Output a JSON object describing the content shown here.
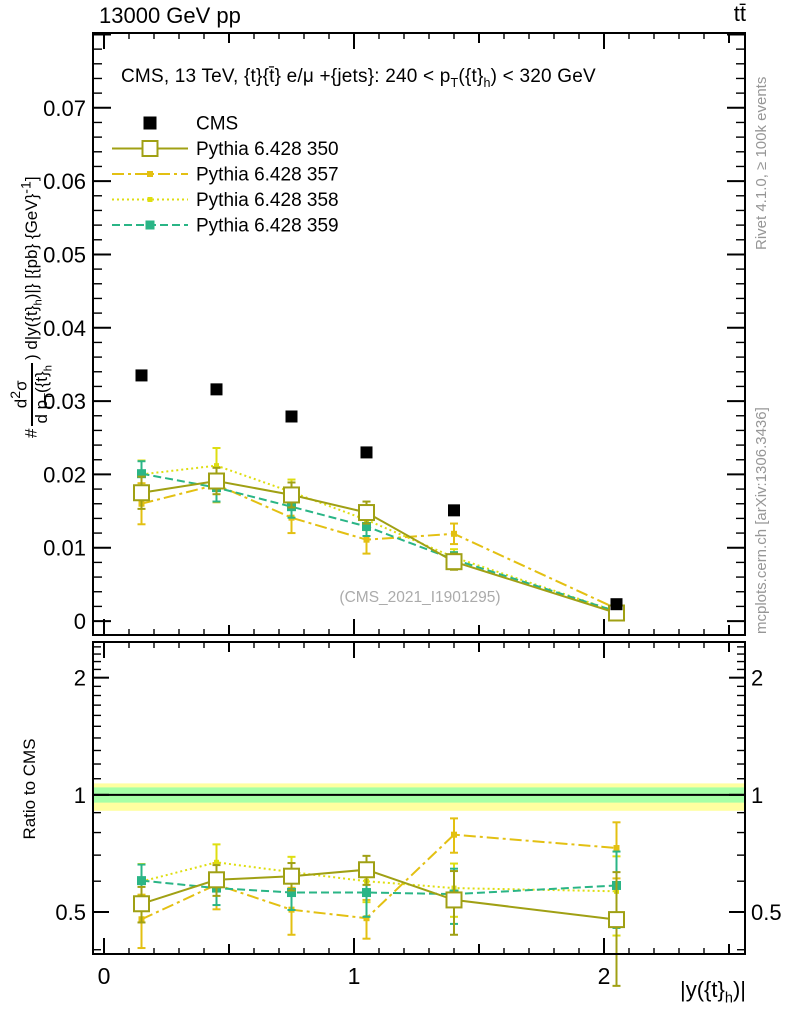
{
  "header": {
    "left": "13000 GeV pp",
    "right": "tt̄"
  },
  "side_notes": {
    "right_top": "Rivet 4.1.0, ≥ 100k events",
    "right_bottom": "mcplots.cern.ch [arXiv:1306.3436]"
  },
  "main_panel": {
    "title": "CMS, 13 TeV, {t}{t̄} e/μ +{jets}: 240 < p~T~({t}~h~) < 320 GeV",
    "watermark": "(CMS_2021_I1901295)",
    "ylabel": {
      "prefix": "#",
      "numerator": "d^2^σ",
      "denominator": "d p~T~({t}~h~",
      "suffix": ") d|y({t}~h~)|} [{pb} {GeV}^-1^]"
    }
  },
  "ratio_panel": {
    "ylabel": "Ratio to CMS"
  },
  "xlabel": "|y({t}~h~)|",
  "colors": {
    "cms": "#000000",
    "pythia350": "#a0a014",
    "pythia357": "#e3c012",
    "pythia358": "#dede10",
    "pythia359": "#2ab586",
    "band_yellow": "#ffffa0",
    "band_green": "#a6ffa6",
    "side_note_gray": "#969696",
    "watermark_gray": "#ababab"
  },
  "chart_data": [
    {
      "id": "main",
      "type": "scatter",
      "title": "CMS, 13 TeV, {t}{t} e/mu +{jets}: 240 < pT({t}h) < 320 GeV",
      "xlabel": "|y({t}h)|",
      "ylabel": "# d2sigma / d pT({t}h) d|y({t}h)| [{pb} {GeV}-1]",
      "x": [
        0.15,
        0.45,
        0.75,
        1.05,
        1.4,
        2.05
      ],
      "bin_edges": [
        0,
        0.3,
        0.6,
        0.9,
        1.2,
        1.6,
        2.5
      ],
      "xlim": [
        -0.044,
        2.564
      ],
      "ylim": [
        -0.0019,
        0.0802
      ],
      "grid": false,
      "legend_position": "top-left",
      "y_tick_labels": [
        "0",
        "0.01",
        "0.02",
        "0.03",
        "0.04",
        "0.05",
        "0.06",
        "0.07"
      ],
      "x_tick_labels": [
        {
          "v": 0,
          "label": "0"
        },
        {
          "v": 1,
          "label": "1"
        },
        {
          "v": 2,
          "label": "2"
        }
      ],
      "series": [
        {
          "name": "CMS",
          "color": "#000000",
          "marker": "square-filled",
          "marker_size": 12,
          "line": "none",
          "values": [
            0.0335,
            0.0316,
            0.0279,
            0.023,
            0.0151,
            0.0023
          ],
          "errors": [
            0,
            0,
            0,
            0,
            0,
            0
          ]
        },
        {
          "name": "Pythia 6.428 350",
          "color": "#a0a014",
          "marker": "square-open",
          "marker_size": 15,
          "line": "solid",
          "values": [
            0.0175,
            0.0191,
            0.0172,
            0.0148,
            0.0081,
            0.0011
          ],
          "errors": [
            0.0022,
            0.0018,
            0.0017,
            0.0015,
            0.0011,
            0.0004
          ]
        },
        {
          "name": "Pythia 6.428 357",
          "color": "#e3c012",
          "marker": "square-filled",
          "marker_size": 6,
          "line": "dash-dot",
          "values": [
            0.016,
            0.0186,
            0.0141,
            0.0111,
            0.0119,
            0.0017
          ],
          "errors": [
            0.0028,
            0.0024,
            0.0021,
            0.0019,
            0.0014,
            0.0005
          ]
        },
        {
          "name": "Pythia 6.428 358",
          "color": "#dede10",
          "marker": "square-filled",
          "marker_size": 5,
          "line": "dotted",
          "values": [
            0.02,
            0.0212,
            0.0176,
            0.0138,
            0.0087,
            0.0013
          ],
          "errors": [
            0.0019,
            0.0024,
            0.0017,
            0.0014,
            0.0011,
            0.0004
          ]
        },
        {
          "name": "Pythia 6.428 359",
          "color": "#2ab586",
          "marker": "square-filled",
          "marker_size": 9,
          "line": "dashed",
          "values": [
            0.0201,
            0.0182,
            0.0156,
            0.0129,
            0.0084,
            0.0013
          ],
          "errors": [
            0.0017,
            0.0019,
            0.0015,
            0.0013,
            0.001,
            0.0004
          ]
        }
      ]
    },
    {
      "id": "ratio",
      "type": "line",
      "ylabel": "Ratio to CMS",
      "yscale": "log",
      "ylim": [
        0.39,
        2.47
      ],
      "reference_line": 1,
      "bands": [
        {
          "color": "#ffffa0",
          "lo": 0.91,
          "hi": 1.07
        },
        {
          "color": "#a6ffa6",
          "lo": 0.955,
          "hi": 1.045
        }
      ],
      "y_tick_labels": [
        {
          "v": 2,
          "label": "2"
        },
        {
          "v": 1,
          "label": "1"
        },
        {
          "v": 0.5,
          "label": "0.5"
        }
      ],
      "series": [
        {
          "name": "Pythia 6.428 350",
          "color": "#a0a014",
          "marker": "square-open",
          "marker_size": 15,
          "line": "solid",
          "values": [
            0.525,
            0.605,
            0.618,
            0.642,
            0.537,
            0.478
          ],
          "errors": [
            0.055,
            0.055,
            0.05,
            0.055,
            0.1,
            0.155
          ]
        },
        {
          "name": "Pythia 6.428 357",
          "color": "#e3c012",
          "marker": "square-filled",
          "marker_size": 6,
          "line": "dash-dot",
          "values": [
            0.479,
            0.588,
            0.507,
            0.482,
            0.79,
            0.73
          ],
          "errors": [
            0.075,
            0.08,
            0.07,
            0.055,
            0.08,
            0.12
          ]
        },
        {
          "name": "Pythia 6.428 358",
          "color": "#dede10",
          "marker": "square-filled",
          "marker_size": 5,
          "line": "dotted",
          "values": [
            0.599,
            0.671,
            0.633,
            0.6,
            0.576,
            0.565
          ],
          "errors": [
            0.065,
            0.075,
            0.06,
            0.07,
            0.09,
            0.13
          ]
        },
        {
          "name": "Pythia 6.428 359",
          "color": "#2ab586",
          "marker": "square-filled",
          "marker_size": 9,
          "line": "dashed",
          "values": [
            0.602,
            0.576,
            0.561,
            0.561,
            0.556,
            0.585
          ],
          "errors": [
            0.06,
            0.055,
            0.055,
            0.075,
            0.09,
            0.13
          ]
        }
      ]
    }
  ]
}
